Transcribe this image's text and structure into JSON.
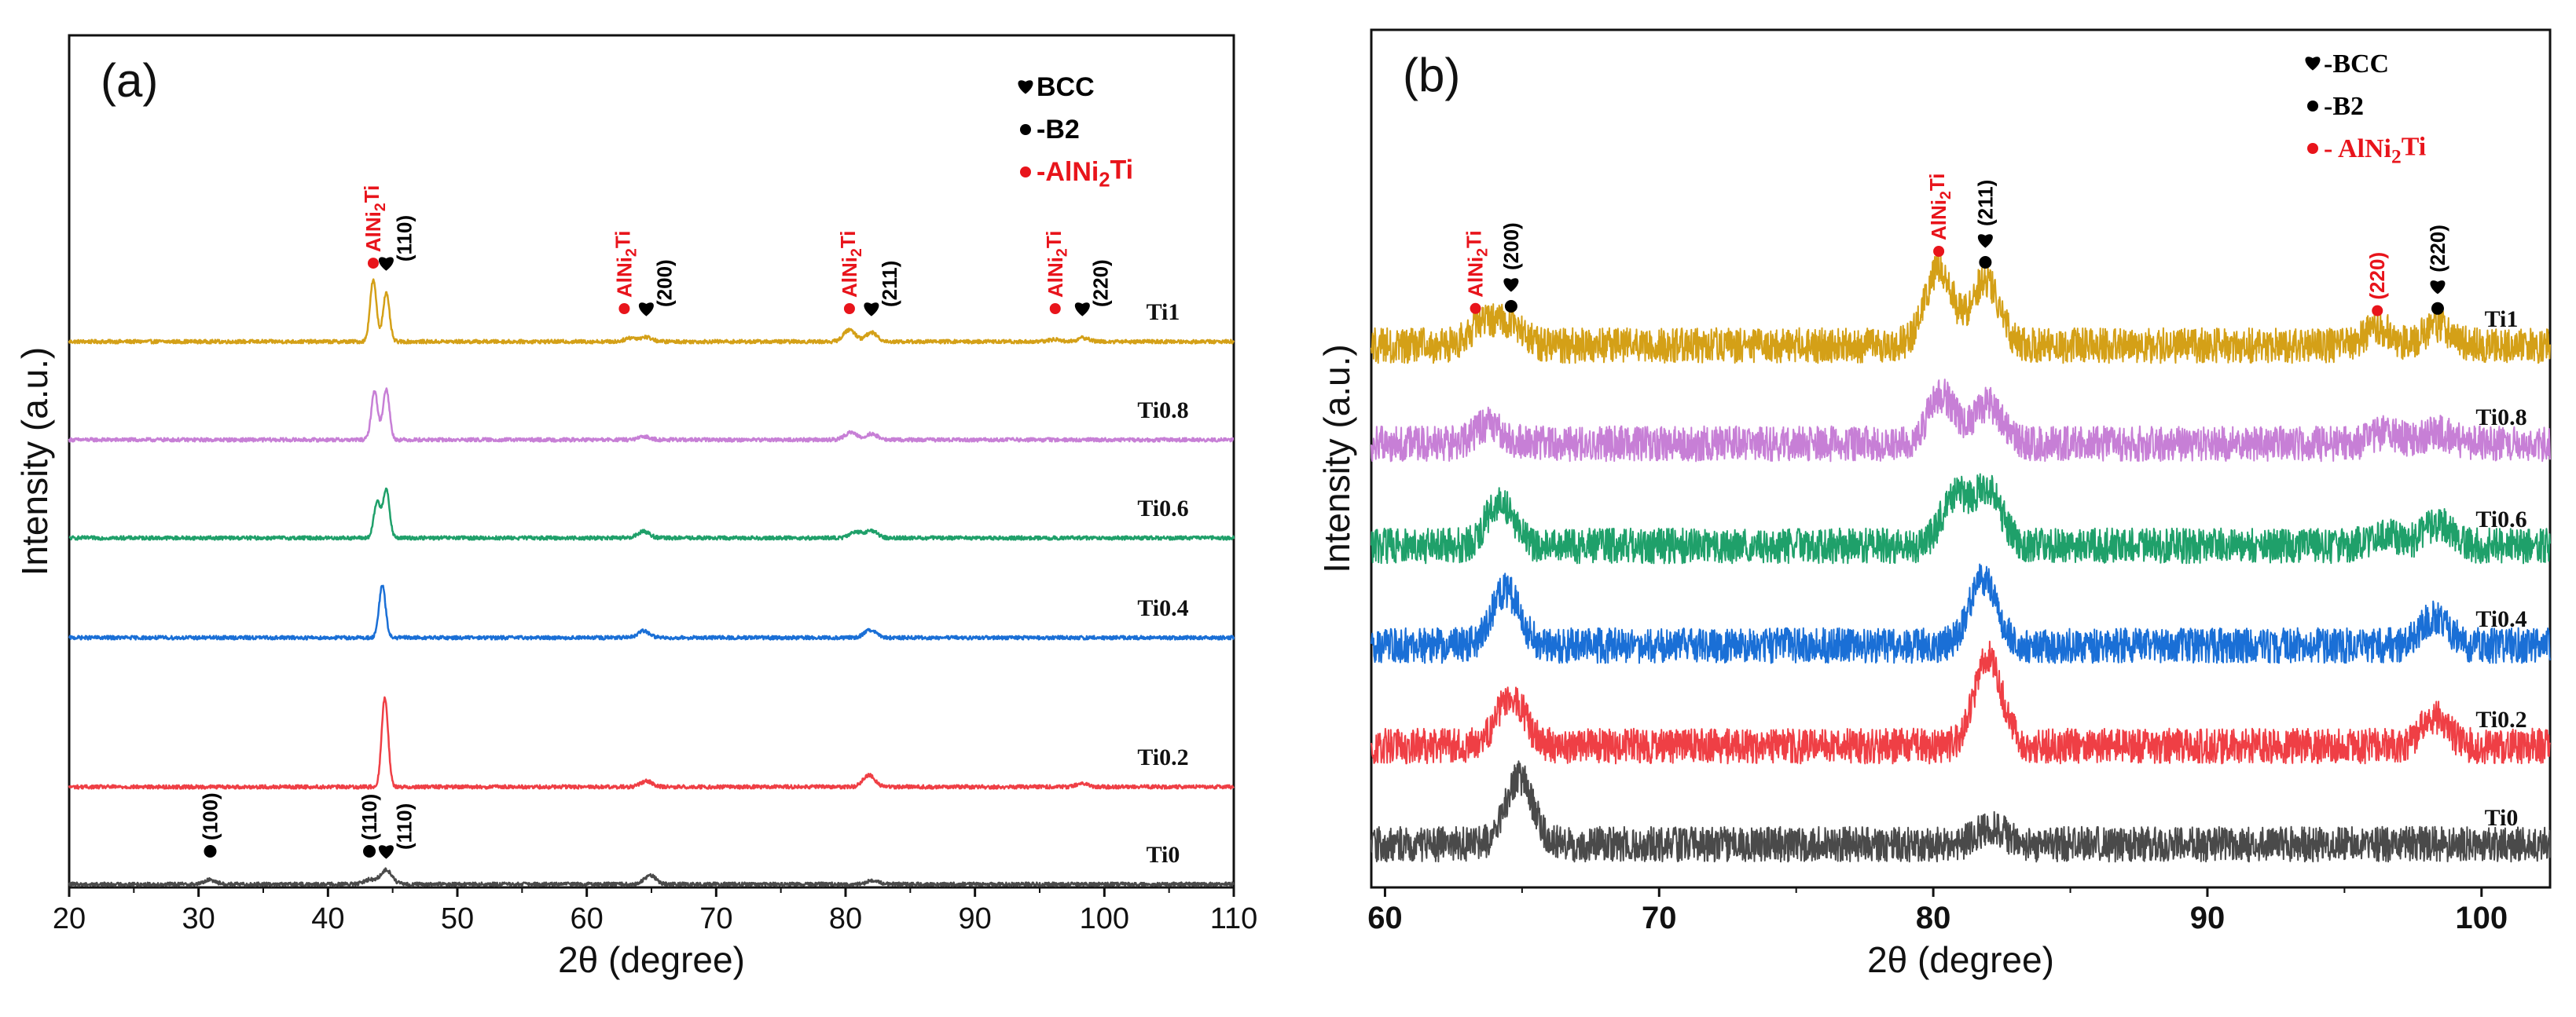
{
  "chart_data": [
    {
      "type": "line",
      "panel": "(a)",
      "xlabel": "2θ (degree)",
      "ylabel": "Intensity (a.u.)",
      "xlim": [
        20,
        110
      ],
      "xticks": [
        20,
        30,
        40,
        50,
        60,
        70,
        80,
        90,
        100,
        110
      ],
      "legend": [
        {
          "symbol": "♥",
          "text": "BCC",
          "color": "#000000"
        },
        {
          "symbol": "●",
          "text": "-B2",
          "color": "#000000"
        },
        {
          "symbol": "●",
          "text": "-AlNi₂Ti",
          "color": "#e8141b"
        }
      ],
      "series": [
        {
          "name": "Ti1",
          "color": "#d4a017",
          "peaks": [
            [
              43.5,
              8.2
            ],
            [
              44.5,
              6.5
            ],
            [
              63.4,
              0.5
            ],
            [
              64.6,
              0.6
            ],
            [
              80.3,
              1.6
            ],
            [
              82.0,
              1.2
            ],
            [
              96.2,
              0.3
            ],
            [
              98.4,
              0.5
            ]
          ]
        },
        {
          "name": "Ti0.8",
          "color": "#c77fd6",
          "peaks": [
            [
              43.6,
              6.5
            ],
            [
              44.5,
              6.8
            ],
            [
              64.5,
              0.4
            ],
            [
              80.4,
              1.0
            ],
            [
              82.0,
              0.8
            ]
          ]
        },
        {
          "name": "Ti0.6",
          "color": "#1fa06a",
          "peaks": [
            [
              43.8,
              4.8
            ],
            [
              44.5,
              6.5
            ],
            [
              64.4,
              0.9
            ],
            [
              80.8,
              0.8
            ],
            [
              82.0,
              1.0
            ]
          ]
        },
        {
          "name": "Ti0.4",
          "color": "#1a6fd6",
          "peaks": [
            [
              44.2,
              7.0
            ],
            [
              64.4,
              0.9
            ],
            [
              81.9,
              1.0
            ]
          ]
        },
        {
          "name": "Ti0.2",
          "color": "#ef3f45",
          "peaks": [
            [
              44.4,
              12.0
            ],
            [
              64.6,
              0.8
            ],
            [
              81.8,
              1.6
            ],
            [
              98.3,
              0.5
            ]
          ]
        },
        {
          "name": "Ti0",
          "color": "#4a4a4a",
          "peaks": [
            [
              30.9,
              0.6
            ],
            [
              43.2,
              0.6
            ],
            [
              44.5,
              1.9
            ],
            [
              64.9,
              1.2
            ],
            [
              82.1,
              0.5
            ]
          ]
        }
      ],
      "annotations": [
        {
          "series": "Ti1",
          "x": 43.5,
          "marker": "red-dot",
          "text": "AlNi₂Ti",
          "color": "#e8141b"
        },
        {
          "series": "Ti1",
          "x": 44.5,
          "marker": "heart",
          "text": "(110)",
          "color": "#000000"
        },
        {
          "series": "Ti1",
          "x": 62.9,
          "marker": "red-dot",
          "text": "AlNi₂Ti",
          "color": "#e8141b"
        },
        {
          "series": "Ti1",
          "x": 64.6,
          "marker": "heart",
          "text": "(200)",
          "color": "#000000"
        },
        {
          "series": "Ti1",
          "x": 80.3,
          "marker": "red-dot",
          "text": "AlNi₂Ti",
          "color": "#e8141b"
        },
        {
          "series": "Ti1",
          "x": 82.0,
          "marker": "heart",
          "text": "(211)",
          "color": "#000000"
        },
        {
          "series": "Ti1",
          "x": 96.2,
          "marker": "red-dot",
          "text": "AlNi₂Ti",
          "color": "#e8141b"
        },
        {
          "series": "Ti1",
          "x": 98.3,
          "marker": "heart",
          "text": "(220)",
          "color": "#000000"
        },
        {
          "series": "Ti0",
          "x": 30.9,
          "marker": "black-dot",
          "text": "(100)",
          "color": "#000000"
        },
        {
          "series": "Ti0",
          "x": 43.2,
          "marker": "black-dot",
          "text": "(110)",
          "color": "#000000"
        },
        {
          "series": "Ti0",
          "x": 44.5,
          "marker": "heart",
          "text": "(110)",
          "color": "#000000"
        }
      ]
    },
    {
      "type": "line",
      "panel": "(b)",
      "xlabel": "2θ (degree)",
      "ylabel": "Intensity (a.u.)",
      "xlim": [
        59.5,
        102.5
      ],
      "xticks": [
        60,
        70,
        80,
        90,
        100
      ],
      "legend": [
        {
          "symbol": "♥",
          "text": "-BCC",
          "color": "#000000"
        },
        {
          "symbol": "●",
          "text": "-B2",
          "color": "#000000"
        },
        {
          "symbol": "●",
          "text": "- AlNi₂Ti",
          "color": "#e8141b"
        }
      ],
      "series": [
        {
          "name": "Ti1",
          "color": "#d4a017",
          "peaks": [
            [
              63.5,
              0.9
            ],
            [
              64.5,
              1.0
            ],
            [
              80.2,
              3.5
            ],
            [
              81.9,
              3.0
            ],
            [
              96.2,
              0.8
            ],
            [
              98.4,
              0.9
            ]
          ]
        },
        {
          "name": "Ti0.8",
          "color": "#c77fd6",
          "peaks": [
            [
              63.8,
              0.9
            ],
            [
              80.3,
              2.2
            ],
            [
              82.0,
              1.8
            ],
            [
              96.5,
              0.5
            ],
            [
              98.4,
              0.5
            ]
          ]
        },
        {
          "name": "Ti0.6",
          "color": "#1fa06a",
          "peaks": [
            [
              64.2,
              2.0
            ],
            [
              80.8,
              2.2
            ],
            [
              82.0,
              2.5
            ],
            [
              96.5,
              0.5
            ],
            [
              98.4,
              1.0
            ]
          ]
        },
        {
          "name": "Ti0.4",
          "color": "#1a6fd6",
          "peaks": [
            [
              64.4,
              2.5
            ],
            [
              81.8,
              3.0
            ],
            [
              98.3,
              1.3
            ]
          ]
        },
        {
          "name": "Ti0.2",
          "color": "#ef3f45",
          "peaks": [
            [
              64.6,
              2.3
            ],
            [
              82.0,
              4.0
            ],
            [
              98.3,
              1.3
            ]
          ]
        },
        {
          "name": "Ti0",
          "color": "#4a4a4a",
          "peaks": [
            [
              64.9,
              3.0
            ],
            [
              82.1,
              0.8
            ]
          ]
        }
      ],
      "annotations": [
        {
          "series": "Ti1",
          "x": 63.3,
          "marker": "red-dot",
          "text": "AlNi₂Ti",
          "color": "#e8141b"
        },
        {
          "series": "Ti1",
          "x": 64.6,
          "marker": "heart-dot",
          "text": "(200)",
          "color": "#000000"
        },
        {
          "series": "Ti1",
          "x": 80.2,
          "marker": "red-dot",
          "text": "AlNi₂Ti",
          "color": "#e8141b"
        },
        {
          "series": "Ti1",
          "x": 81.9,
          "marker": "heart-dot",
          "text": "(211)",
          "color": "#000000"
        },
        {
          "series": "Ti1",
          "x": 96.2,
          "marker": "red-dot",
          "text": "(220)",
          "color": "#e8141b"
        },
        {
          "series": "Ti1",
          "x": 98.4,
          "marker": "heart-dot",
          "text": "(220)",
          "color": "#000000"
        }
      ]
    }
  ]
}
